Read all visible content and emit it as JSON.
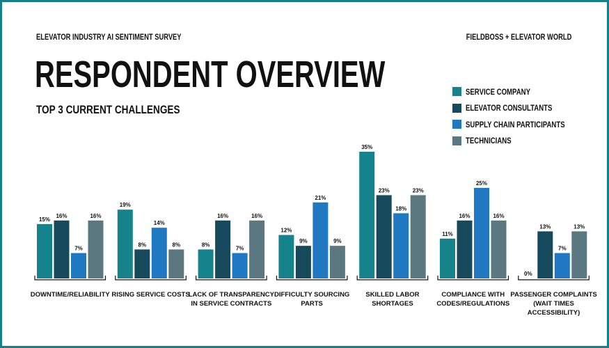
{
  "header": {
    "survey": "ELEVATOR INDUSTRY AI SENTIMENT SURVEY",
    "brand": "FIELDBOSS + ELEVATOR WORLD"
  },
  "chart_data": {
    "type": "bar",
    "title": "RESPONDENT OVERVIEW",
    "subtitle": "TOP 3 CURRENT CHALLENGES",
    "legend_position": "top-right",
    "grid": false,
    "ylim": [
      0,
      35
    ],
    "categories": [
      [
        "DOWNTIME/RELIABILITY"
      ],
      [
        "RISING SERVICE COSTS"
      ],
      [
        "LACK OF TRANSPARENCY",
        "IN SERVICE CONTRACTS"
      ],
      [
        "DIFFICULTY SOURCING",
        "PARTS"
      ],
      [
        "SKILLED LABOR",
        "SHORTAGES"
      ],
      [
        "COMPLIANCE WITH",
        "CODES/REGULATIONS"
      ],
      [
        "PASSENGER COMPLAINTS",
        "(WAIT TIMES",
        "ACCESSIBILITY)"
      ]
    ],
    "series": [
      {
        "name": "SERVICE COMPANY",
        "color": "#15838b",
        "values": [
          15,
          19,
          8,
          12,
          35,
          11,
          0
        ]
      },
      {
        "name": "ELEVATOR CONSULTANTS",
        "color": "#17495d",
        "values": [
          16,
          8,
          16,
          9,
          23,
          16,
          13
        ]
      },
      {
        "name": "SUPPLY CHAIN PARTICIPANTS",
        "color": "#1f78c1",
        "values": [
          7,
          14,
          7,
          21,
          18,
          25,
          7
        ]
      },
      {
        "name": "TECHNICIANS",
        "color": "#5b7880",
        "values": [
          16,
          8,
          16,
          9,
          23,
          16,
          13
        ]
      }
    ]
  }
}
